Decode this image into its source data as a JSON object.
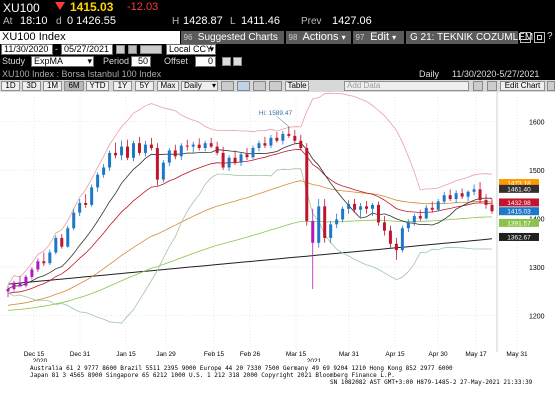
{
  "ticker": {
    "symbol": "XU100",
    "last": "1415.03",
    "change": "-12.03",
    "at_label": "At",
    "time": "18:10",
    "d_label": "d",
    "open": "0 1426.55",
    "h_label": "H",
    "high": "1428.87",
    "l_label": "L",
    "low": "1411.46",
    "prev_label": "Prev",
    "prev": "1427.06"
  },
  "toolbar": {
    "index_name": "XU100 Index",
    "num_96": "96",
    "suggested_charts": "Suggested Charts",
    "num_98": "98",
    "actions": "Actions",
    "num_97": "97",
    "edit": "Edit",
    "news": "G 21: TEKNIK COZUMLEM..."
  },
  "controls": {
    "start_date": "11/30/2020",
    "end_date": "05/27/2021",
    "currency": "Local CCY",
    "study_label": "Study",
    "study_value": "ExpMA",
    "period_label": "Period",
    "period_value": "50",
    "offset_label": "Offset",
    "offset_value": "0"
  },
  "info": {
    "description": "XU100 Index : Borsa Istanbul 100 Index",
    "frequency": "Daily",
    "date_range": "11/30/2020-5/27/2021"
  },
  "buttons": {
    "periods": [
      "1D",
      "3D",
      "1M",
      "6M",
      "YTD",
      "1Y",
      "5Y",
      "Max"
    ],
    "daily": "Daily",
    "table": "Table",
    "add_data": "Add Data",
    "edit_chart": "Edit Chart"
  },
  "chart_data": {
    "type": "candlestick",
    "ylim": [
      1150,
      1650
    ],
    "y_ticks": [
      1200,
      1300,
      1400,
      1500,
      1600
    ],
    "x_ticks": [
      "Dec 15",
      "Dec 31",
      "Jan 15",
      "Jan 29",
      "Feb 15",
      "Feb 26",
      "Mar 15",
      "Mar 31",
      "Apr 15",
      "Apr 30",
      "May 17",
      "May 31"
    ],
    "x_year_labels": [
      "2020",
      "2021"
    ],
    "annotation": "Hi: 1589.47",
    "price_labels": [
      {
        "text": "1473.18",
        "color": "#ff9900"
      },
      {
        "text": "1461.40",
        "color": "#303030"
      },
      {
        "text": "1432.98",
        "color": "#c0152c"
      },
      {
        "text": "1415.03",
        "color": "#1e78c8"
      },
      {
        "text": "1391.57",
        "color": "#8bc34a"
      },
      {
        "text": "1362.67",
        "color": "#202020"
      }
    ],
    "candles": [
      {
        "o": 1250,
        "h": 1262,
        "l": 1238,
        "c": 1255
      },
      {
        "o": 1255,
        "h": 1272,
        "l": 1250,
        "c": 1268
      },
      {
        "o": 1268,
        "h": 1282,
        "l": 1262,
        "c": 1260
      },
      {
        "o": 1262,
        "h": 1284,
        "l": 1258,
        "c": 1280
      },
      {
        "o": 1280,
        "h": 1300,
        "l": 1275,
        "c": 1295
      },
      {
        "o": 1295,
        "h": 1318,
        "l": 1290,
        "c": 1312
      },
      {
        "o": 1312,
        "h": 1330,
        "l": 1302,
        "c": 1308
      },
      {
        "o": 1308,
        "h": 1336,
        "l": 1304,
        "c": 1330
      },
      {
        "o": 1330,
        "h": 1365,
        "l": 1326,
        "c": 1360
      },
      {
        "o": 1360,
        "h": 1368,
        "l": 1338,
        "c": 1342
      },
      {
        "o": 1342,
        "h": 1385,
        "l": 1340,
        "c": 1380
      },
      {
        "o": 1380,
        "h": 1420,
        "l": 1376,
        "c": 1412
      },
      {
        "o": 1412,
        "h": 1440,
        "l": 1405,
        "c": 1432
      },
      {
        "o": 1432,
        "h": 1450,
        "l": 1422,
        "c": 1428
      },
      {
        "o": 1428,
        "h": 1470,
        "l": 1424,
        "c": 1464
      },
      {
        "o": 1464,
        "h": 1495,
        "l": 1455,
        "c": 1490
      },
      {
        "o": 1490,
        "h": 1512,
        "l": 1484,
        "c": 1505
      },
      {
        "o": 1505,
        "h": 1540,
        "l": 1498,
        "c": 1535
      },
      {
        "o": 1535,
        "h": 1556,
        "l": 1524,
        "c": 1530
      },
      {
        "o": 1530,
        "h": 1560,
        "l": 1520,
        "c": 1548
      },
      {
        "o": 1548,
        "h": 1562,
        "l": 1520,
        "c": 1525
      },
      {
        "o": 1525,
        "h": 1560,
        "l": 1518,
        "c": 1555
      },
      {
        "o": 1555,
        "h": 1568,
        "l": 1530,
        "c": 1535
      },
      {
        "o": 1535,
        "h": 1560,
        "l": 1528,
        "c": 1552
      },
      {
        "o": 1552,
        "h": 1566,
        "l": 1540,
        "c": 1545
      },
      {
        "o": 1545,
        "h": 1555,
        "l": 1468,
        "c": 1480
      },
      {
        "o": 1480,
        "h": 1520,
        "l": 1474,
        "c": 1515
      },
      {
        "o": 1515,
        "h": 1545,
        "l": 1508,
        "c": 1540
      },
      {
        "o": 1540,
        "h": 1552,
        "l": 1522,
        "c": 1528
      },
      {
        "o": 1528,
        "h": 1555,
        "l": 1520,
        "c": 1550
      },
      {
        "o": 1550,
        "h": 1562,
        "l": 1540,
        "c": 1548
      },
      {
        "o": 1548,
        "h": 1558,
        "l": 1535,
        "c": 1552
      },
      {
        "o": 1552,
        "h": 1565,
        "l": 1540,
        "c": 1545
      },
      {
        "o": 1545,
        "h": 1560,
        "l": 1538,
        "c": 1555
      },
      {
        "o": 1555,
        "h": 1566,
        "l": 1545,
        "c": 1548
      },
      {
        "o": 1548,
        "h": 1558,
        "l": 1530,
        "c": 1535
      },
      {
        "o": 1535,
        "h": 1548,
        "l": 1500,
        "c": 1505
      },
      {
        "o": 1505,
        "h": 1530,
        "l": 1498,
        "c": 1525
      },
      {
        "o": 1525,
        "h": 1540,
        "l": 1510,
        "c": 1515
      },
      {
        "o": 1515,
        "h": 1535,
        "l": 1508,
        "c": 1532
      },
      {
        "o": 1532,
        "h": 1545,
        "l": 1520,
        "c": 1526
      },
      {
        "o": 1526,
        "h": 1550,
        "l": 1522,
        "c": 1545
      },
      {
        "o": 1545,
        "h": 1560,
        "l": 1538,
        "c": 1555
      },
      {
        "o": 1555,
        "h": 1568,
        "l": 1545,
        "c": 1550
      },
      {
        "o": 1550,
        "h": 1572,
        "l": 1545,
        "c": 1566
      },
      {
        "o": 1566,
        "h": 1578,
        "l": 1556,
        "c": 1560
      },
      {
        "o": 1560,
        "h": 1580,
        "l": 1552,
        "c": 1574
      },
      {
        "o": 1574,
        "h": 1589,
        "l": 1566,
        "c": 1570
      },
      {
        "o": 1570,
        "h": 1582,
        "l": 1555,
        "c": 1560
      },
      {
        "o": 1560,
        "h": 1572,
        "l": 1540,
        "c": 1545
      },
      {
        "o": 1545,
        "h": 1555,
        "l": 1385,
        "c": 1395
      },
      {
        "o": 1395,
        "h": 1420,
        "l": 1255,
        "c": 1350
      },
      {
        "o": 1350,
        "h": 1440,
        "l": 1340,
        "c": 1425
      },
      {
        "o": 1425,
        "h": 1440,
        "l": 1350,
        "c": 1360
      },
      {
        "o": 1360,
        "h": 1395,
        "l": 1350,
        "c": 1388
      },
      {
        "o": 1388,
        "h": 1410,
        "l": 1380,
        "c": 1398
      },
      {
        "o": 1398,
        "h": 1425,
        "l": 1392,
        "c": 1420
      },
      {
        "o": 1420,
        "h": 1438,
        "l": 1410,
        "c": 1430
      },
      {
        "o": 1430,
        "h": 1440,
        "l": 1412,
        "c": 1418
      },
      {
        "o": 1418,
        "h": 1432,
        "l": 1400,
        "c": 1425
      },
      {
        "o": 1425,
        "h": 1436,
        "l": 1410,
        "c": 1420
      },
      {
        "o": 1420,
        "h": 1432,
        "l": 1405,
        "c": 1428
      },
      {
        "o": 1428,
        "h": 1435,
        "l": 1385,
        "c": 1392
      },
      {
        "o": 1392,
        "h": 1405,
        "l": 1365,
        "c": 1375
      },
      {
        "o": 1375,
        "h": 1385,
        "l": 1340,
        "c": 1348
      },
      {
        "o": 1348,
        "h": 1360,
        "l": 1315,
        "c": 1335
      },
      {
        "o": 1335,
        "h": 1385,
        "l": 1330,
        "c": 1380
      },
      {
        "o": 1380,
        "h": 1398,
        "l": 1372,
        "c": 1392
      },
      {
        "o": 1392,
        "h": 1410,
        "l": 1385,
        "c": 1405
      },
      {
        "o": 1405,
        "h": 1418,
        "l": 1395,
        "c": 1400
      },
      {
        "o": 1400,
        "h": 1428,
        "l": 1398,
        "c": 1422
      },
      {
        "o": 1422,
        "h": 1435,
        "l": 1412,
        "c": 1418
      },
      {
        "o": 1418,
        "h": 1440,
        "l": 1415,
        "c": 1435
      },
      {
        "o": 1435,
        "h": 1455,
        "l": 1430,
        "c": 1448
      },
      {
        "o": 1448,
        "h": 1460,
        "l": 1436,
        "c": 1440
      },
      {
        "o": 1440,
        "h": 1458,
        "l": 1432,
        "c": 1452
      },
      {
        "o": 1452,
        "h": 1462,
        "l": 1440,
        "c": 1445
      },
      {
        "o": 1445,
        "h": 1458,
        "l": 1436,
        "c": 1455
      },
      {
        "o": 1455,
        "h": 1470,
        "l": 1448,
        "c": 1460
      },
      {
        "o": 1460,
        "h": 1475,
        "l": 1432,
        "c": 1438
      },
      {
        "o": 1438,
        "h": 1450,
        "l": 1420,
        "c": 1428
      },
      {
        "o": 1428,
        "h": 1440,
        "l": 1410,
        "c": 1415
      }
    ]
  },
  "footer": {
    "line1": "Australia 61 2 9777 8600 Brazil 5511 2395 9000 Europe 44 20 7330 7500 Germany 49 69 9204 1210 Hong Kong 852 2977 6000",
    "line2": "Japan 81 3 4565 8900       Singapore 65 6212 1000        U.S. 1 212 318 2000           Copyright 2021 Bloomberg Finance L.P.",
    "line3": "SN 1082082 AST  GMT+3:00 H879-1485-2 27-May-2021 21:33:39"
  },
  "colors": {
    "ticker_last": "#ffd700",
    "ticker_neg": "#ff3b3b",
    "orange_bar": "#ff8a00",
    "up_candle": "#1e78c8",
    "down_candle": "#c0152c",
    "spike_candle": "#b21ab8"
  }
}
